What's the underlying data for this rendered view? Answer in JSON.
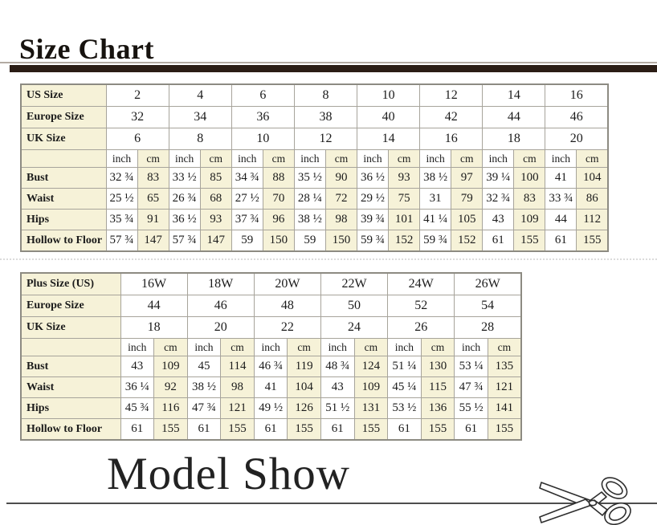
{
  "titles": {
    "size_chart": "Size Chart",
    "model_show": "Model Show"
  },
  "units": {
    "inch": "inch",
    "cm": "cm"
  },
  "colors": {
    "stripe_cream": "#f6f2d8",
    "grid_line": "#a7a49b",
    "title_bar_brown": "#2b1d15",
    "cut_line_gray": "#4d4d4d"
  },
  "tables": [
    {
      "name": "standard-sizes",
      "header_rows": [
        {
          "label": "US Size",
          "values": [
            "2",
            "4",
            "6",
            "8",
            "10",
            "12",
            "14",
            "16"
          ]
        },
        {
          "label": "Europe Size",
          "values": [
            "32",
            "34",
            "36",
            "38",
            "40",
            "42",
            "44",
            "46"
          ]
        },
        {
          "label": "UK Size",
          "values": [
            "6",
            "8",
            "10",
            "12",
            "14",
            "16",
            "18",
            "20"
          ]
        }
      ],
      "measurement_rows": [
        {
          "label": "Bust",
          "pairs": [
            [
              "32 ¾",
              "83"
            ],
            [
              "33 ½",
              "85"
            ],
            [
              "34 ¾",
              "88"
            ],
            [
              "35 ½",
              "90"
            ],
            [
              "36 ½",
              "93"
            ],
            [
              "38 ½",
              "97"
            ],
            [
              "39 ¼",
              "100"
            ],
            [
              "41",
              "104"
            ]
          ]
        },
        {
          "label": "Waist",
          "pairs": [
            [
              "25 ½",
              "65"
            ],
            [
              "26 ¾",
              "68"
            ],
            [
              "27 ½",
              "70"
            ],
            [
              "28 ¼",
              "72"
            ],
            [
              "29 ½",
              "75"
            ],
            [
              "31",
              "79"
            ],
            [
              "32 ¾",
              "83"
            ],
            [
              "33 ¾",
              "86"
            ]
          ]
        },
        {
          "label": "Hips",
          "pairs": [
            [
              "35 ¾",
              "91"
            ],
            [
              "36 ½",
              "93"
            ],
            [
              "37 ¾",
              "96"
            ],
            [
              "38 ½",
              "98"
            ],
            [
              "39 ¾",
              "101"
            ],
            [
              "41 ¼",
              "105"
            ],
            [
              "43",
              "109"
            ],
            [
              "44",
              "112"
            ]
          ]
        },
        {
          "label": "Hollow to Floor",
          "pairs": [
            [
              "57 ¾",
              "147"
            ],
            [
              "57 ¾",
              "147"
            ],
            [
              "59",
              "150"
            ],
            [
              "59",
              "150"
            ],
            [
              "59 ¾",
              "152"
            ],
            [
              "59 ¾",
              "152"
            ],
            [
              "61",
              "155"
            ],
            [
              "61",
              "155"
            ]
          ]
        }
      ]
    },
    {
      "name": "plus-sizes",
      "header_rows": [
        {
          "label": "Plus Size (US)",
          "values": [
            "16W",
            "18W",
            "20W",
            "22W",
            "24W",
            "26W"
          ]
        },
        {
          "label": "Europe Size",
          "values": [
            "44",
            "46",
            "48",
            "50",
            "52",
            "54"
          ]
        },
        {
          "label": "UK Size",
          "values": [
            "18",
            "20",
            "22",
            "24",
            "26",
            "28"
          ]
        }
      ],
      "measurement_rows": [
        {
          "label": "Bust",
          "pairs": [
            [
              "43",
              "109"
            ],
            [
              "45",
              "114"
            ],
            [
              "46 ¾",
              "119"
            ],
            [
              "48 ¾",
              "124"
            ],
            [
              "51 ¼",
              "130"
            ],
            [
              "53 ¼",
              "135"
            ]
          ]
        },
        {
          "label": "Waist",
          "pairs": [
            [
              "36 ¼",
              "92"
            ],
            [
              "38 ½",
              "98"
            ],
            [
              "41",
              "104"
            ],
            [
              "43",
              "109"
            ],
            [
              "45 ¼",
              "115"
            ],
            [
              "47 ¾",
              "121"
            ]
          ]
        },
        {
          "label": "Hips",
          "pairs": [
            [
              "45 ¾",
              "116"
            ],
            [
              "47 ¾",
              "121"
            ],
            [
              "49 ½",
              "126"
            ],
            [
              "51 ½",
              "131"
            ],
            [
              "53 ½",
              "136"
            ],
            [
              "55 ½",
              "141"
            ]
          ]
        },
        {
          "label": "Hollow to Floor",
          "pairs": [
            [
              "61",
              "155"
            ],
            [
              "61",
              "155"
            ],
            [
              "61",
              "155"
            ],
            [
              "61",
              "155"
            ],
            [
              "61",
              "155"
            ],
            [
              "61",
              "155"
            ]
          ]
        }
      ]
    }
  ]
}
